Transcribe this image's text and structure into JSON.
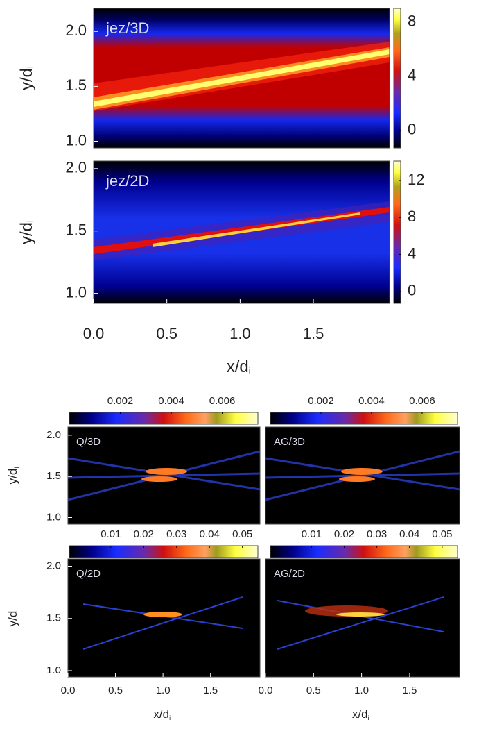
{
  "chart_data": [
    {
      "type": "heatmap",
      "label": "jez/3D",
      "xlim": [
        0,
        2.02
      ],
      "ylim": [
        0.94,
        2.21
      ],
      "yticks": [
        {
          "value": 1,
          "label": "1.0"
        },
        1.5,
        {
          "value": 2,
          "label": "2.0"
        }
      ],
      "ylabel": "y/d",
      "ylabel_sub": "i",
      "colorbar": {
        "lim": [
          -1.3,
          9
        ],
        "ticks": [
          0,
          4,
          8
        ]
      }
    },
    {
      "type": "heatmap",
      "label": "jez/2D",
      "xlim": [
        0,
        2.02
      ],
      "ylim": [
        0.92,
        2.06
      ],
      "yticks": [
        {
          "value": 1,
          "label": "1.0"
        },
        1.5,
        {
          "value": 2,
          "label": "2.0"
        }
      ],
      "ylabel": "y/d",
      "ylabel_sub": "i",
      "xticks": [
        {
          "value": 0,
          "label": "0.0"
        },
        0.5,
        {
          "value": 1,
          "label": "1.0"
        },
        1.5
      ],
      "xlabel": "x/d",
      "xlabel_sub": "i",
      "colorbar": {
        "lim": [
          -1.3,
          14.1
        ],
        "ticks": [
          0,
          4,
          8,
          12
        ]
      }
    },
    {
      "type": "heatmap",
      "label": "Q/3D",
      "xlim": [
        0,
        2.02
      ],
      "ylim": [
        0.92,
        2.1
      ],
      "yticks": [
        {
          "value": 1,
          "label": "1.0"
        },
        1.5,
        {
          "value": 2,
          "label": "2.0"
        }
      ],
      "ylabel": "y/d",
      "ylabel_sub": "i",
      "colorbar": {
        "lim": [
          0,
          0.0074
        ],
        "ticks": [
          0.002,
          0.004,
          0.006
        ]
      }
    },
    {
      "type": "heatmap",
      "label": "AG/3D",
      "xlim": [
        0,
        2.02
      ],
      "ylim": [
        0.92,
        2.1
      ],
      "colorbar": {
        "lim": [
          0,
          0.0074
        ],
        "ticks": [
          0.002,
          0.004,
          0.006
        ]
      }
    },
    {
      "type": "heatmap",
      "label": "Q/2D",
      "xlim": [
        0,
        2.02
      ],
      "ylim": [
        0.94,
        2.07
      ],
      "yticks": [
        {
          "value": 1,
          "label": "1.0"
        },
        1.5,
        {
          "value": 2,
          "label": "2.0"
        }
      ],
      "ylabel": "y/d",
      "ylabel_sub": "i",
      "xticks": [
        {
          "value": 0,
          "label": "0.0"
        },
        0.5,
        {
          "value": 1,
          "label": "1.0"
        },
        1.5
      ],
      "xlabel": "x/d",
      "xlabel_sub": "i",
      "colorbar": {
        "lim": [
          -0.0026,
          0.0547
        ],
        "ticks": [
          0.01,
          0.02,
          0.03,
          0.04,
          0.05
        ]
      }
    },
    {
      "type": "heatmap",
      "label": "AG/2D",
      "xlim": [
        0,
        2.02
      ],
      "ylim": [
        0.94,
        2.07
      ],
      "xticks": [
        {
          "value": 0,
          "label": "0.0"
        },
        0.5,
        {
          "value": 1,
          "label": "1.0"
        },
        1.5
      ],
      "xlabel": "x/d",
      "xlabel_sub": "i",
      "colorbar": {
        "lim": [
          -0.0026,
          0.0547
        ],
        "ticks": [
          0.01,
          0.02,
          0.03,
          0.04,
          0.05
        ]
      }
    }
  ]
}
